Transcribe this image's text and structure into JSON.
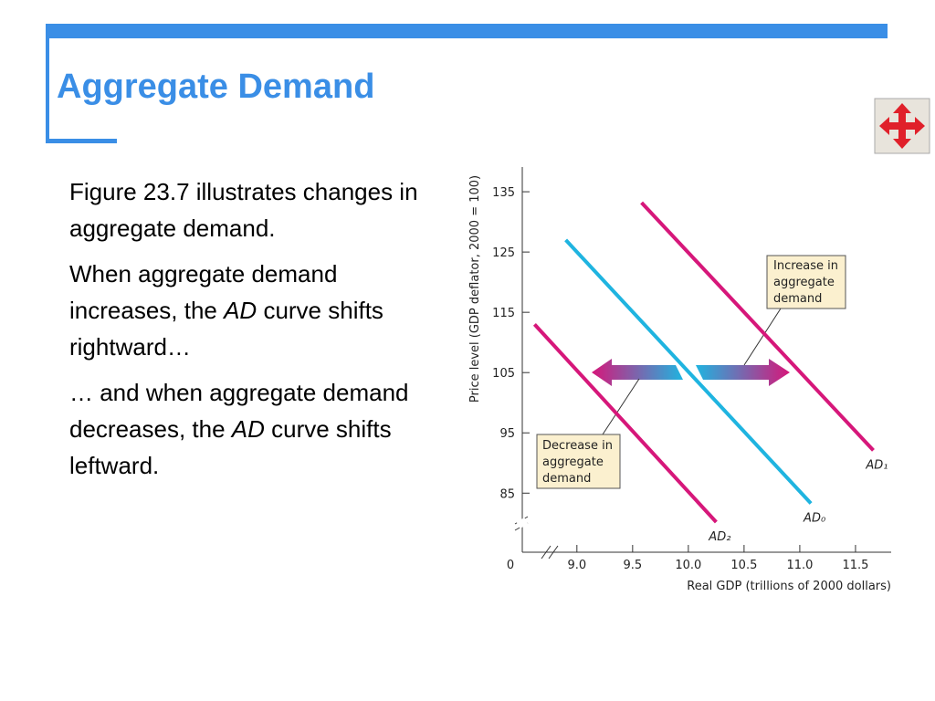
{
  "slide": {
    "title": "Aggregate Demand",
    "paragraphs": [
      [
        {
          "text": "Figure 23.7 illustrates changes in aggregate demand.",
          "italic": false
        }
      ],
      [
        {
          "text": "When aggregate demand increases, the ",
          "italic": false
        },
        {
          "text": "AD",
          "italic": true
        },
        {
          "text": " curve shifts rightward…",
          "italic": false
        }
      ],
      [
        {
          "text": "… and when aggregate demand decreases, the ",
          "italic": false
        },
        {
          "text": "AD",
          "italic": true
        },
        {
          "text": " curve shifts leftward.",
          "italic": false
        }
      ]
    ]
  },
  "chart_data": {
    "type": "line",
    "x_label": "Real GDP (trillions of 2000 dollars)",
    "y_label": "Price level (GDP deflator, 2000 = 100)",
    "origin_label": "0",
    "xlim": [
      8.51,
      11.82
    ],
    "ylim": [
      75.2,
      139.1
    ],
    "xticks": [
      {
        "value": 9,
        "label": "9.0"
      },
      9.5,
      {
        "value": 10,
        "label": "10.0"
      },
      10.5,
      {
        "value": 11,
        "label": "11.0"
      },
      11.5
    ],
    "yticks": [
      85,
      95,
      105,
      115,
      125,
      135
    ],
    "series": [
      {
        "name": "AD₁",
        "color": "#d6177a",
        "x": [
          9.58,
          11.66
        ],
        "values": [
          133.2,
          92.1
        ]
      },
      {
        "name": "AD₀",
        "color": "#1fb4e0",
        "x": [
          8.9,
          11.1
        ],
        "values": [
          127.0,
          83.3
        ]
      },
      {
        "name": "AD₂",
        "color": "#d6177a",
        "x": [
          8.62,
          10.25
        ],
        "values": [
          113.0,
          80.2
        ]
      }
    ],
    "annotations": [
      "Increase in aggregate demand",
      "Decrease in aggregate demand"
    ]
  }
}
